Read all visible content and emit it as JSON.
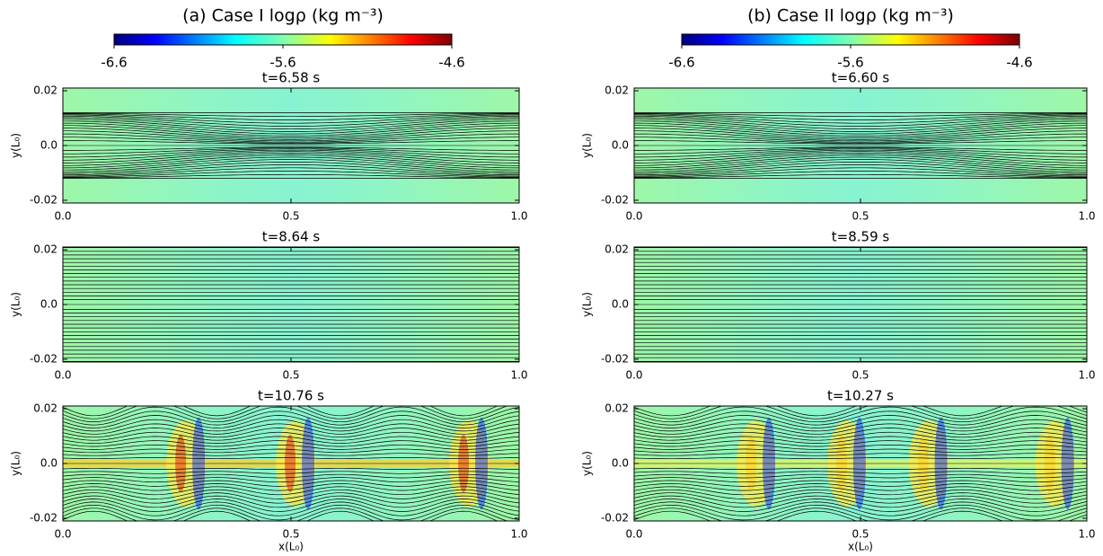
{
  "colorbars": [
    {
      "title": "(a) Case I logρ (kg m⁻³)",
      "clim": [
        -6.6,
        -4.6
      ],
      "ticks": [
        -6.6,
        -5.6,
        -4.6
      ]
    },
    {
      "title": "(b) Case II logρ (kg m⁻³)",
      "clim": [
        -6.6,
        -4.6
      ],
      "ticks": [
        -6.6,
        -5.6,
        -4.6
      ]
    }
  ],
  "chart_data": [
    {
      "type": "heatmap",
      "title": "t=6.58 s",
      "ylabel": "y(L₀)",
      "xlim": [
        0,
        1
      ],
      "ylim": [
        -0.021,
        0.021
      ],
      "xticks": [
        {
          "value": 0,
          "label": "0.0"
        },
        {
          "value": 0.5,
          "label": "0.5"
        },
        {
          "value": 1,
          "label": "1.0"
        }
      ],
      "yticks": [
        -0.02,
        {
          "value": 0,
          "label": "0.0"
        },
        0.02
      ]
    },
    {
      "type": "heatmap",
      "title": "t=8.64 s",
      "ylabel": "y(L₀)",
      "xlim": [
        0,
        1
      ],
      "ylim": [
        -0.021,
        0.021
      ],
      "xticks": [
        {
          "value": 0,
          "label": "0.0"
        },
        {
          "value": 0.5,
          "label": "0.5"
        },
        {
          "value": 1,
          "label": "1.0"
        }
      ],
      "yticks": [
        -0.02,
        {
          "value": 0,
          "label": "0.0"
        },
        0.02
      ]
    },
    {
      "type": "heatmap",
      "title": "t=10.76 s",
      "ylabel": "y(L₀)",
      "xlabel": "x(L₀)",
      "xlim": [
        0,
        1
      ],
      "ylim": [
        -0.021,
        0.021
      ],
      "xticks": [
        {
          "value": 0,
          "label": "0.0"
        },
        {
          "value": 0.5,
          "label": "0.5"
        },
        {
          "value": 1,
          "label": "1.0"
        }
      ],
      "yticks": [
        -0.02,
        {
          "value": 0,
          "label": "0.0"
        },
        0.02
      ]
    },
    {
      "type": "heatmap",
      "title": "t=6.60 s",
      "ylabel": "y(L₀)",
      "xlim": [
        0,
        1
      ],
      "ylim": [
        -0.021,
        0.021
      ],
      "xticks": [
        {
          "value": 0,
          "label": "0.0"
        },
        {
          "value": 0.5,
          "label": "0.5"
        },
        {
          "value": 1,
          "label": "1.0"
        }
      ],
      "yticks": [
        -0.02,
        {
          "value": 0,
          "label": "0.0"
        },
        0.02
      ]
    },
    {
      "type": "heatmap",
      "title": "t=8.59 s",
      "ylabel": "y(L₀)",
      "xlim": [
        0,
        1
      ],
      "ylim": [
        -0.021,
        0.021
      ],
      "xticks": [
        {
          "value": 0,
          "label": "0.0"
        },
        {
          "value": 0.5,
          "label": "0.5"
        },
        {
          "value": 1,
          "label": "1.0"
        }
      ],
      "yticks": [
        -0.02,
        {
          "value": 0,
          "label": "0.0"
        },
        0.02
      ]
    },
    {
      "type": "heatmap",
      "title": "t=10.27 s",
      "ylabel": "y(L₀)",
      "xlabel": "x(L₀)",
      "xlim": [
        0,
        1
      ],
      "ylim": [
        -0.021,
        0.021
      ],
      "xticks": [
        {
          "value": 0,
          "label": "0.0"
        },
        {
          "value": 0.5,
          "label": "0.5"
        },
        {
          "value": 1,
          "label": "1.0"
        }
      ],
      "yticks": [
        -0.02,
        {
          "value": 0,
          "label": "0.0"
        },
        0.02
      ]
    }
  ]
}
